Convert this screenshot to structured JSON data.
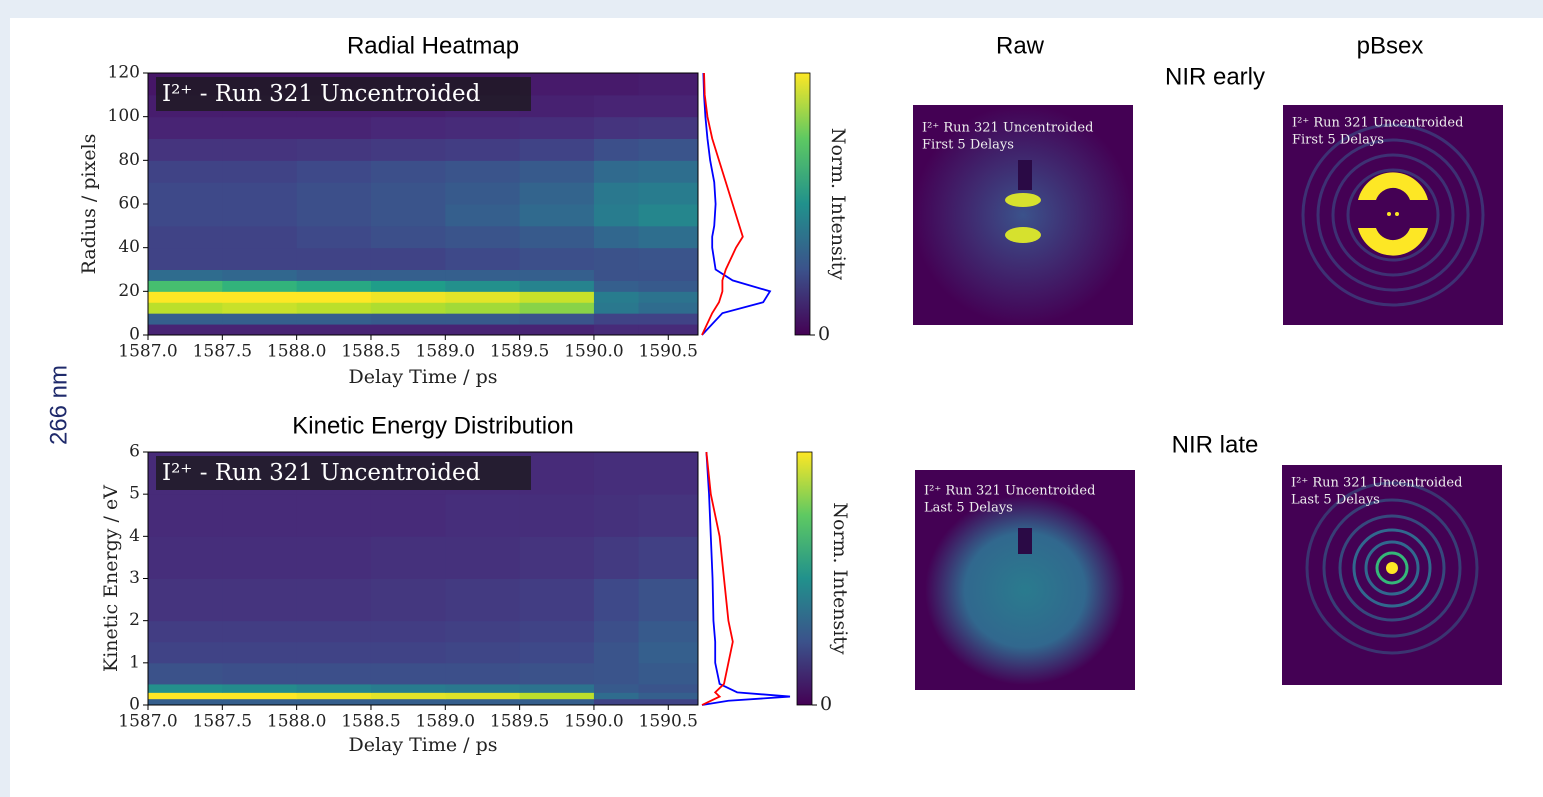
{
  "panel_label": "266 nm",
  "image_grid": {
    "columns": [
      "Raw",
      "pBsex"
    ],
    "rows": [
      "NIR early",
      "NIR late"
    ],
    "images": [
      {
        "caption": [
          "I²⁺ Run 321 Uncentroided",
          "First 5 Delays"
        ]
      },
      {
        "caption": [
          "I²⁺ Run 321 Uncentroided",
          "First 5 Delays"
        ]
      },
      {
        "caption": [
          "I²⁺ Run 321 Uncentroided",
          "Last 5 Delays"
        ]
      },
      {
        "caption": [
          "I²⁺ Run 321 Uncentroided",
          "Last 5 Delays"
        ]
      }
    ]
  },
  "chart_data": [
    {
      "type": "heatmap",
      "title": "Radial Heatmap",
      "annotation": "I²⁺ - Run 321 Uncentroided",
      "xlabel": "Delay Time / ps",
      "ylabel": "Radius / pixels",
      "colorbar_label": "Norm. Intensity",
      "xlim": [
        1587.0,
        1590.7
      ],
      "ylim": [
        0,
        120
      ],
      "clim": [
        0,
        1
      ],
      "xticks": [
        {
          "value": 1587,
          "label": "1587.0"
        },
        1587.5,
        {
          "value": 1588,
          "label": "1588.0"
        },
        1588.5,
        {
          "value": 1589,
          "label": "1589.0"
        },
        1589.5,
        {
          "value": 1590,
          "label": "1590.0"
        },
        1590.5
      ],
      "yticks": [
        0,
        20,
        40,
        60,
        80,
        100,
        120
      ],
      "cticks": [
        0
      ],
      "x_edges": [
        1587.0,
        1587.5,
        1588.0,
        1588.5,
        1589.0,
        1589.5,
        1590.0,
        1590.3,
        1590.7
      ],
      "y_edges": [
        0,
        5,
        10,
        15,
        20,
        25,
        30,
        40,
        50,
        60,
        70,
        80,
        90,
        100,
        110,
        120
      ],
      "z": [
        [
          0.1,
          0.1,
          0.1,
          0.1,
          0.1,
          0.1,
          0.12,
          0.12
        ],
        [
          0.3,
          0.3,
          0.3,
          0.28,
          0.28,
          0.26,
          0.2,
          0.2
        ],
        [
          0.9,
          0.92,
          0.9,
          0.88,
          0.86,
          0.82,
          0.4,
          0.35
        ],
        [
          1.0,
          1.0,
          1.0,
          0.98,
          0.96,
          0.92,
          0.42,
          0.38
        ],
        [
          0.7,
          0.65,
          0.6,
          0.55,
          0.5,
          0.45,
          0.3,
          0.28
        ],
        [
          0.35,
          0.33,
          0.3,
          0.3,
          0.3,
          0.3,
          0.25,
          0.25
        ],
        [
          0.2,
          0.2,
          0.2,
          0.2,
          0.22,
          0.24,
          0.25,
          0.26
        ],
        [
          0.2,
          0.2,
          0.22,
          0.24,
          0.26,
          0.28,
          0.33,
          0.36
        ],
        [
          0.22,
          0.22,
          0.24,
          0.26,
          0.3,
          0.34,
          0.42,
          0.46
        ],
        [
          0.22,
          0.22,
          0.24,
          0.26,
          0.28,
          0.32,
          0.4,
          0.42
        ],
        [
          0.2,
          0.2,
          0.22,
          0.24,
          0.26,
          0.28,
          0.34,
          0.36
        ],
        [
          0.15,
          0.15,
          0.16,
          0.17,
          0.18,
          0.2,
          0.24,
          0.26
        ],
        [
          0.1,
          0.1,
          0.1,
          0.11,
          0.12,
          0.13,
          0.15,
          0.16
        ],
        [
          0.08,
          0.08,
          0.08,
          0.08,
          0.09,
          0.09,
          0.1,
          0.1
        ],
        [
          0.06,
          0.06,
          0.06,
          0.06,
          0.06,
          0.07,
          0.07,
          0.08
        ]
      ],
      "profile_y": [
        0,
        10,
        15,
        20,
        25,
        30,
        40,
        45,
        50,
        60,
        70,
        80,
        90,
        100,
        110,
        120
      ],
      "profile_lim": [
        0,
        1
      ],
      "series": [
        {
          "color": "#0000ff",
          "values": [
            0,
            0.3,
            0.9,
            1.0,
            0.45,
            0.2,
            0.15,
            0.15,
            0.18,
            0.2,
            0.18,
            0.12,
            0.08,
            0.05,
            0.03,
            0.02
          ]
        },
        {
          "color": "#ff0000",
          "values": [
            0,
            0.15,
            0.25,
            0.3,
            0.3,
            0.35,
            0.5,
            0.6,
            0.55,
            0.45,
            0.35,
            0.25,
            0.15,
            0.08,
            0.04,
            0.03
          ]
        }
      ]
    },
    {
      "type": "heatmap",
      "title": "Kinetic Energy Distribution",
      "annotation": "I²⁺ - Run 321 Uncentroided",
      "xlabel": "Delay Time / ps",
      "ylabel": "Kinetic Energy / eV",
      "colorbar_label": "Norm. Intensity",
      "xlim": [
        1587.0,
        1590.7
      ],
      "ylim": [
        0,
        6
      ],
      "clim": [
        0,
        1
      ],
      "xticks": [
        {
          "value": 1587,
          "label": "1587.0"
        },
        1587.5,
        {
          "value": 1588,
          "label": "1588.0"
        },
        1588.5,
        {
          "value": 1589,
          "label": "1589.0"
        },
        1589.5,
        {
          "value": 1590,
          "label": "1590.0"
        },
        1590.5
      ],
      "yticks": [
        0,
        1,
        2,
        3,
        4,
        5,
        6
      ],
      "cticks": [
        0
      ],
      "x_edges": [
        1587.0,
        1587.5,
        1588.0,
        1588.5,
        1589.0,
        1589.5,
        1590.0,
        1590.3,
        1590.7
      ],
      "y_edges": [
        0,
        0.15,
        0.3,
        0.5,
        1,
        1.5,
        2,
        3,
        4,
        5,
        6
      ],
      "z": [
        [
          0.3,
          0.3,
          0.3,
          0.3,
          0.3,
          0.3,
          0.2,
          0.2
        ],
        [
          1.0,
          1.0,
          0.98,
          0.96,
          0.95,
          0.9,
          0.35,
          0.3
        ],
        [
          0.5,
          0.48,
          0.45,
          0.42,
          0.4,
          0.38,
          0.28,
          0.26
        ],
        [
          0.25,
          0.24,
          0.24,
          0.24,
          0.24,
          0.25,
          0.26,
          0.28
        ],
        [
          0.2,
          0.2,
          0.2,
          0.2,
          0.21,
          0.22,
          0.26,
          0.3
        ],
        [
          0.18,
          0.18,
          0.18,
          0.18,
          0.19,
          0.2,
          0.24,
          0.28
        ],
        [
          0.15,
          0.15,
          0.15,
          0.16,
          0.17,
          0.18,
          0.22,
          0.25
        ],
        [
          0.13,
          0.13,
          0.13,
          0.14,
          0.14,
          0.15,
          0.17,
          0.19
        ],
        [
          0.12,
          0.12,
          0.12,
          0.12,
          0.13,
          0.13,
          0.14,
          0.15
        ],
        [
          0.12,
          0.12,
          0.12,
          0.12,
          0.12,
          0.12,
          0.13,
          0.13
        ]
      ],
      "profile_y": [
        0,
        0.1,
        0.2,
        0.3,
        0.5,
        1,
        1.5,
        2,
        3,
        4,
        5,
        6
      ],
      "profile_lim": [
        0,
        1
      ],
      "series": [
        {
          "color": "#0000ff",
          "values": [
            0,
            0.3,
            1.0,
            0.4,
            0.2,
            0.15,
            0.15,
            0.13,
            0.12,
            0.1,
            0.08,
            0.05
          ]
        },
        {
          "color": "#ff0000",
          "values": [
            0,
            0.1,
            0.2,
            0.15,
            0.25,
            0.3,
            0.35,
            0.3,
            0.25,
            0.2,
            0.1,
            0.05
          ]
        }
      ]
    }
  ]
}
